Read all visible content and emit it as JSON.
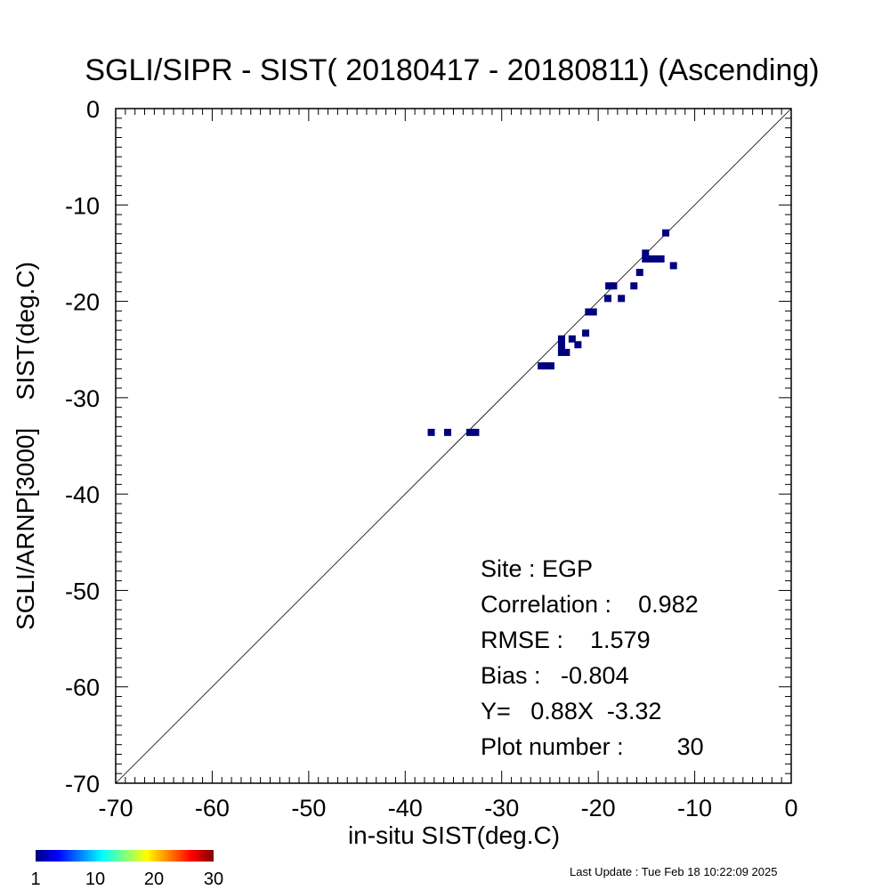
{
  "chart_data": {
    "type": "scatter",
    "title": "SGLI/SIPR - SIST( 20180417 - 20180811) (Ascending)",
    "xlabel": "in-situ SIST(deg.C)",
    "ylabel": "SGLI/ARNP[3000]    SIST(deg.C)",
    "xlim": [
      -70,
      0
    ],
    "ylim": [
      -70,
      0
    ],
    "xticks": [
      "-70",
      "-60",
      "-50",
      "-40",
      "-30",
      "-20",
      "-10",
      "0"
    ],
    "yticks": [
      "0",
      "-10",
      "-20",
      "-30",
      "-40",
      "-50",
      "-60",
      "-70"
    ],
    "reference_line": "y = x",
    "grid": false,
    "point_color": "#00007f",
    "x": [
      -37.3,
      -35.6,
      -33.3,
      -32.7,
      -25.9,
      -25.4,
      -24.9,
      -23.8,
      -23.8,
      -23.8,
      -23.8,
      -23.3,
      -22.7,
      -22.1,
      -21.3,
      -21.0,
      -20.5,
      -19.0,
      -18.9,
      -18.4,
      -17.6,
      -16.3,
      -15.7,
      -15.1,
      -15.1,
      -14.6,
      -14.0,
      -13.5,
      -13.0,
      -12.2
    ],
    "y": [
      -33.6,
      -33.6,
      -33.6,
      -33.6,
      -26.7,
      -26.7,
      -26.7,
      -23.9,
      -24.5,
      -25.0,
      -25.3,
      -25.3,
      -23.9,
      -24.5,
      -23.3,
      -21.1,
      -21.1,
      -19.7,
      -18.4,
      -18.4,
      -19.7,
      -18.4,
      -17.0,
      -15.0,
      -15.6,
      -15.6,
      -15.6,
      -15.6,
      -12.9,
      -16.3
    ],
    "colorbar": {
      "ticks": [
        "1",
        "10",
        "20",
        "30"
      ],
      "colors": [
        "#00007f",
        "#0000ff",
        "#007fff",
        "#00ffff",
        "#7fff7f",
        "#ffff00",
        "#ff7f00",
        "#ff0000",
        "#7f0000"
      ]
    }
  },
  "stats": {
    "site": "Site : EGP",
    "correlation": "Correlation :    0.982",
    "rmse": "RMSE :    1.579",
    "bias": "Bias :   -0.804",
    "regression": "Y=   0.88X  -3.32",
    "plot_number": "Plot number :        30"
  },
  "footer": {
    "last_update": "Last Update : Tue Feb 18 10:22:09 2025"
  }
}
